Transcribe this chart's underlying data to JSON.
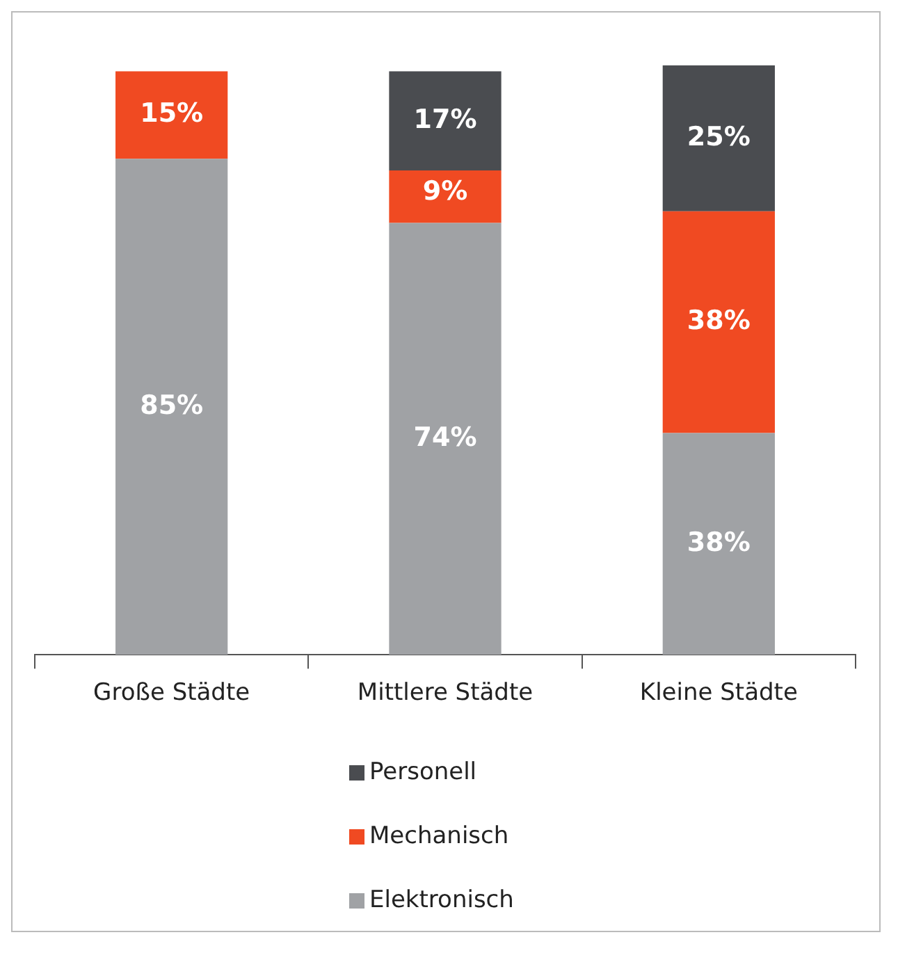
{
  "chart_data": {
    "type": "bar",
    "stacked": true,
    "legend": "bottom",
    "categories": [
      "Große Städte",
      "Mittlere Städte",
      "Kleine Städte"
    ],
    "series": [
      {
        "name": "Elektronisch",
        "color": "#a0a2a5",
        "values": [
          85,
          74,
          38
        ],
        "value_labels": [
          "85%",
          "74%",
          "38%"
        ]
      },
      {
        "name": "Mechanisch",
        "color": "#f04a22",
        "values": [
          15,
          9,
          38
        ],
        "value_labels": [
          "15%",
          "9%",
          "38%"
        ]
      },
      {
        "name": "Personell",
        "color": "#4a4c50",
        "values": [
          null,
          17,
          25
        ],
        "value_labels": [
          null,
          "17%",
          "25%"
        ]
      }
    ]
  }
}
